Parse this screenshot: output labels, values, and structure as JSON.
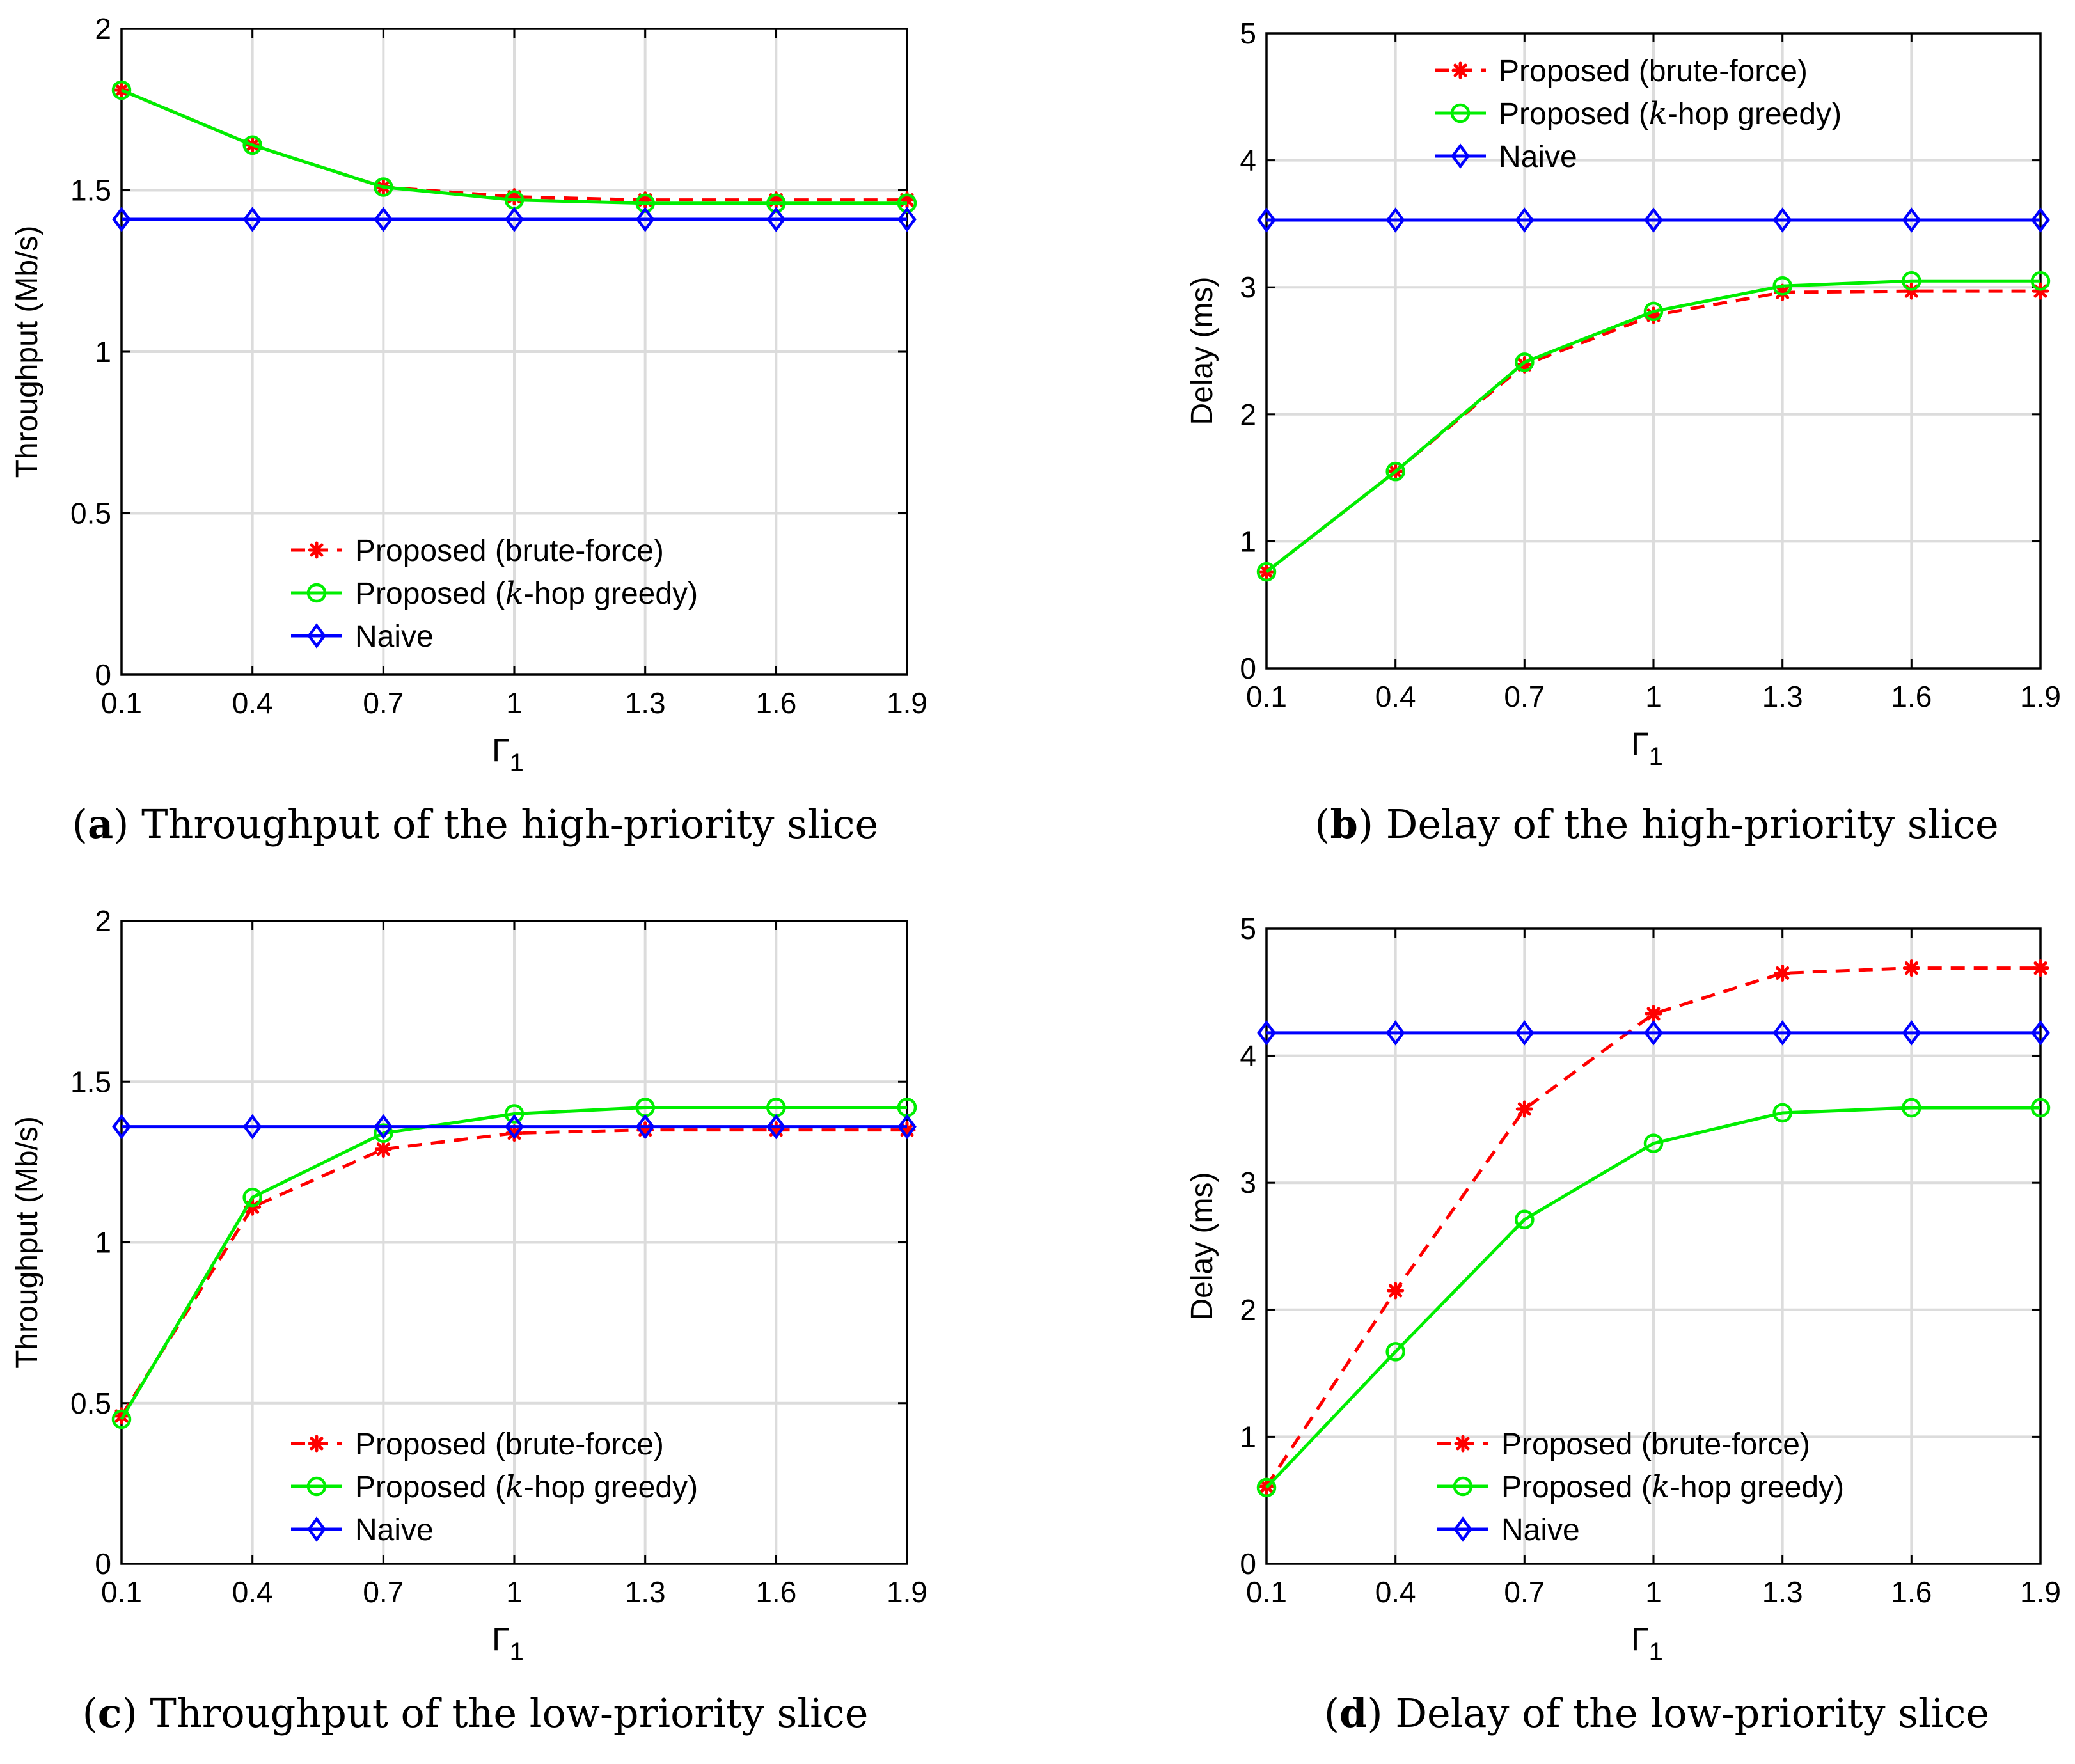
{
  "figure": {
    "x_symbol": "Γ",
    "x_subscript": "1",
    "colors": {
      "brute_force": "#ff0000",
      "greedy": "#00ee00",
      "naive": "#0000ff",
      "grid": "#dcdcdc",
      "axis": "#000000"
    }
  },
  "chart_data": [
    {
      "id": "a",
      "type": "line",
      "caption_label": "(a)",
      "caption_letter": "a",
      "caption_text": "Throughput of the high-priority slice",
      "xlabel": "Γ1",
      "ylabel": "Throughput (Mb/s)",
      "x": [
        0.1,
        0.4,
        0.7,
        1,
        1.3,
        1.6,
        1.9
      ],
      "x_ticks": [
        "0.1",
        "0.4",
        "0.7",
        "1",
        "1.3",
        "1.6",
        "1.9"
      ],
      "xlim": [
        0.1,
        1.9
      ],
      "ylim": [
        0,
        2
      ],
      "y_ticks": [
        0,
        0.5,
        1,
        1.5,
        2
      ],
      "y_tick_labels": [
        "0",
        "0.5",
        "1",
        "1.5",
        "2"
      ],
      "grid": true,
      "legend_position": "lower-center",
      "series": [
        {
          "name": "Proposed (brute-force)",
          "prefix": "Proposed (brute-force)",
          "italic": "",
          "suffix": "",
          "style": "dashed",
          "marker": "asterisk",
          "color_key": "brute_force",
          "values": [
            1.81,
            1.64,
            1.51,
            1.48,
            1.47,
            1.47,
            1.47
          ]
        },
        {
          "name": "Proposed (k-hop greedy)",
          "prefix": "Proposed (",
          "italic": "k",
          "suffix": "-hop greedy)",
          "style": "solid",
          "marker": "circle",
          "color_key": "greedy",
          "values": [
            1.81,
            1.64,
            1.51,
            1.47,
            1.46,
            1.46,
            1.46
          ]
        },
        {
          "name": "Naive",
          "prefix": "Naive",
          "italic": "",
          "suffix": "",
          "style": "solid",
          "marker": "diamond",
          "color_key": "naive",
          "values": [
            1.41,
            1.41,
            1.41,
            1.41,
            1.41,
            1.41,
            1.41
          ]
        }
      ]
    },
    {
      "id": "b",
      "type": "line",
      "caption_label": "(b)",
      "caption_letter": "b",
      "caption_text": "Delay of the high-priority slice",
      "xlabel": "Γ1",
      "ylabel": "Delay (ms)",
      "x": [
        0.1,
        0.4,
        0.7,
        1,
        1.3,
        1.6,
        1.9
      ],
      "x_ticks": [
        "0.1",
        "0.4",
        "0.7",
        "1",
        "1.3",
        "1.6",
        "1.9"
      ],
      "xlim": [
        0.1,
        1.9
      ],
      "ylim": [
        0,
        5
      ],
      "y_ticks": [
        0,
        1,
        2,
        3,
        4,
        5
      ],
      "y_tick_labels": [
        "0",
        "1",
        "2",
        "3",
        "4",
        "5"
      ],
      "grid": true,
      "legend_position": "top-left",
      "series": [
        {
          "name": "Proposed (brute-force)",
          "prefix": "Proposed (brute-force)",
          "italic": "",
          "suffix": "",
          "style": "dashed",
          "marker": "asterisk",
          "color_key": "brute_force",
          "values": [
            0.76,
            1.55,
            2.39,
            2.78,
            2.96,
            2.97,
            2.97
          ]
        },
        {
          "name": "Proposed (k-hop greedy)",
          "prefix": "Proposed (",
          "italic": "k",
          "suffix": "-hop greedy)",
          "style": "solid",
          "marker": "circle",
          "color_key": "greedy",
          "values": [
            0.76,
            1.55,
            2.41,
            2.81,
            3.01,
            3.05,
            3.05
          ]
        },
        {
          "name": "Naive",
          "prefix": "Naive",
          "italic": "",
          "suffix": "",
          "style": "solid",
          "marker": "diamond",
          "color_key": "naive",
          "values": [
            3.53,
            3.53,
            3.53,
            3.53,
            3.53,
            3.53,
            3.53
          ]
        }
      ]
    },
    {
      "id": "c",
      "type": "line",
      "caption_label": "(c)",
      "caption_letter": "c",
      "caption_text": "Throughput of the low-priority slice",
      "xlabel": "Γ1",
      "ylabel": "Throughput (Mb/s)",
      "x": [
        0.1,
        0.4,
        0.7,
        1,
        1.3,
        1.6,
        1.9
      ],
      "x_ticks": [
        "0.1",
        "0.4",
        "0.7",
        "1",
        "1.3",
        "1.6",
        "1.9"
      ],
      "xlim": [
        0.1,
        1.9
      ],
      "ylim": [
        0,
        2
      ],
      "y_ticks": [
        0,
        0.5,
        1,
        1.5,
        2
      ],
      "y_tick_labels": [
        "0",
        "0.5",
        "1",
        "1.5",
        "2"
      ],
      "grid": true,
      "legend_position": "lower-center",
      "series": [
        {
          "name": "Proposed (brute-force)",
          "prefix": "Proposed (brute-force)",
          "italic": "",
          "suffix": "",
          "style": "dashed",
          "marker": "asterisk",
          "color_key": "brute_force",
          "values": [
            0.46,
            1.11,
            1.29,
            1.34,
            1.35,
            1.35,
            1.35
          ]
        },
        {
          "name": "Proposed (k-hop greedy)",
          "prefix": "Proposed (",
          "italic": "k",
          "suffix": "-hop greedy)",
          "style": "solid",
          "marker": "circle",
          "color_key": "greedy",
          "values": [
            0.45,
            1.14,
            1.34,
            1.4,
            1.42,
            1.42,
            1.42
          ]
        },
        {
          "name": "Naive",
          "prefix": "Naive",
          "italic": "",
          "suffix": "",
          "style": "solid",
          "marker": "diamond",
          "color_key": "naive",
          "values": [
            1.36,
            1.36,
            1.36,
            1.36,
            1.36,
            1.36,
            1.36
          ]
        }
      ]
    },
    {
      "id": "d",
      "type": "line",
      "caption_label": "(d)",
      "caption_letter": "d",
      "caption_text": "Delay of the low-priority slice",
      "xlabel": "Γ1",
      "ylabel": "Delay (ms)",
      "x": [
        0.1,
        0.4,
        0.7,
        1,
        1.3,
        1.6,
        1.9
      ],
      "x_ticks": [
        "0.1",
        "0.4",
        "0.7",
        "1",
        "1.3",
        "1.6",
        "1.9"
      ],
      "xlim": [
        0.1,
        1.9
      ],
      "ylim": [
        0,
        5
      ],
      "y_ticks": [
        0,
        1,
        2,
        3,
        4,
        5
      ],
      "y_tick_labels": [
        "0",
        "1",
        "2",
        "3",
        "4",
        "5"
      ],
      "grid": true,
      "legend_position": "lower-left",
      "series": [
        {
          "name": "Proposed (brute-force)",
          "prefix": "Proposed (brute-force)",
          "italic": "",
          "suffix": "",
          "style": "dashed",
          "marker": "asterisk",
          "color_key": "brute_force",
          "values": [
            0.61,
            2.15,
            3.58,
            4.33,
            4.65,
            4.69,
            4.69
          ]
        },
        {
          "name": "Proposed (k-hop greedy)",
          "prefix": "Proposed (",
          "italic": "k",
          "suffix": "-hop greedy)",
          "style": "solid",
          "marker": "circle",
          "color_key": "greedy",
          "values": [
            0.6,
            1.67,
            2.71,
            3.31,
            3.55,
            3.59,
            3.59
          ]
        },
        {
          "name": "Naive",
          "prefix": "Naive",
          "italic": "",
          "suffix": "",
          "style": "solid",
          "marker": "diamond",
          "color_key": "naive",
          "values": [
            4.18,
            4.18,
            4.18,
            4.18,
            4.18,
            4.18,
            4.18
          ]
        }
      ]
    }
  ]
}
